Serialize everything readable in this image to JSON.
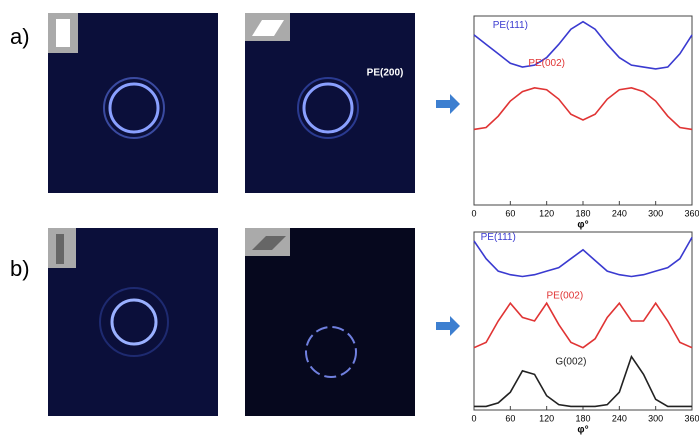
{
  "panels": [
    {
      "label": "a)",
      "annotation": "PE(200)"
    },
    {
      "label": "b)"
    }
  ],
  "chart_data": [
    {
      "type": "line",
      "xlabel": "φ°",
      "x": [
        0,
        20,
        40,
        60,
        80,
        100,
        120,
        140,
        160,
        180,
        200,
        220,
        240,
        260,
        280,
        300,
        320,
        340,
        360
      ],
      "xlim": [
        0,
        360
      ],
      "xticks": [
        0,
        60,
        120,
        180,
        240,
        300,
        360
      ],
      "ylim": [
        0,
        1
      ],
      "series": [
        {
          "name": "PE(111)",
          "color": "#3a3ad0",
          "values": [
            0.9,
            0.85,
            0.8,
            0.75,
            0.73,
            0.74,
            0.78,
            0.85,
            0.93,
            0.97,
            0.93,
            0.85,
            0.78,
            0.74,
            0.73,
            0.72,
            0.73,
            0.8,
            0.9
          ]
        },
        {
          "name": "PE(002)",
          "color": "#e03434",
          "values": [
            0.4,
            0.41,
            0.47,
            0.55,
            0.6,
            0.62,
            0.61,
            0.56,
            0.48,
            0.45,
            0.48,
            0.56,
            0.61,
            0.62,
            0.6,
            0.55,
            0.47,
            0.41,
            0.4
          ]
        }
      ]
    },
    {
      "type": "line",
      "xlabel": "φ°",
      "x": [
        0,
        20,
        40,
        60,
        80,
        100,
        120,
        140,
        160,
        180,
        200,
        220,
        240,
        260,
        280,
        300,
        320,
        340,
        360
      ],
      "xlim": [
        0,
        360
      ],
      "xticks": [
        0,
        60,
        120,
        180,
        240,
        300,
        360
      ],
      "ylim": [
        0,
        1
      ],
      "series": [
        {
          "name": "PE(111)",
          "color": "#3a3ad0",
          "values": [
            0.95,
            0.85,
            0.78,
            0.76,
            0.75,
            0.76,
            0.78,
            0.8,
            0.85,
            0.9,
            0.84,
            0.78,
            0.76,
            0.75,
            0.76,
            0.78,
            0.8,
            0.85,
            0.97
          ]
        },
        {
          "name": "PE(002)",
          "color": "#e03434",
          "values": [
            0.35,
            0.38,
            0.5,
            0.6,
            0.52,
            0.5,
            0.6,
            0.48,
            0.38,
            0.35,
            0.4,
            0.52,
            0.6,
            0.5,
            0.5,
            0.6,
            0.5,
            0.38,
            0.35
          ]
        },
        {
          "name": "G(002)",
          "color": "#222222",
          "values": [
            0.02,
            0.02,
            0.04,
            0.1,
            0.22,
            0.2,
            0.08,
            0.03,
            0.02,
            0.02,
            0.02,
            0.03,
            0.1,
            0.3,
            0.2,
            0.06,
            0.02,
            0.02,
            0.02
          ]
        }
      ]
    }
  ]
}
